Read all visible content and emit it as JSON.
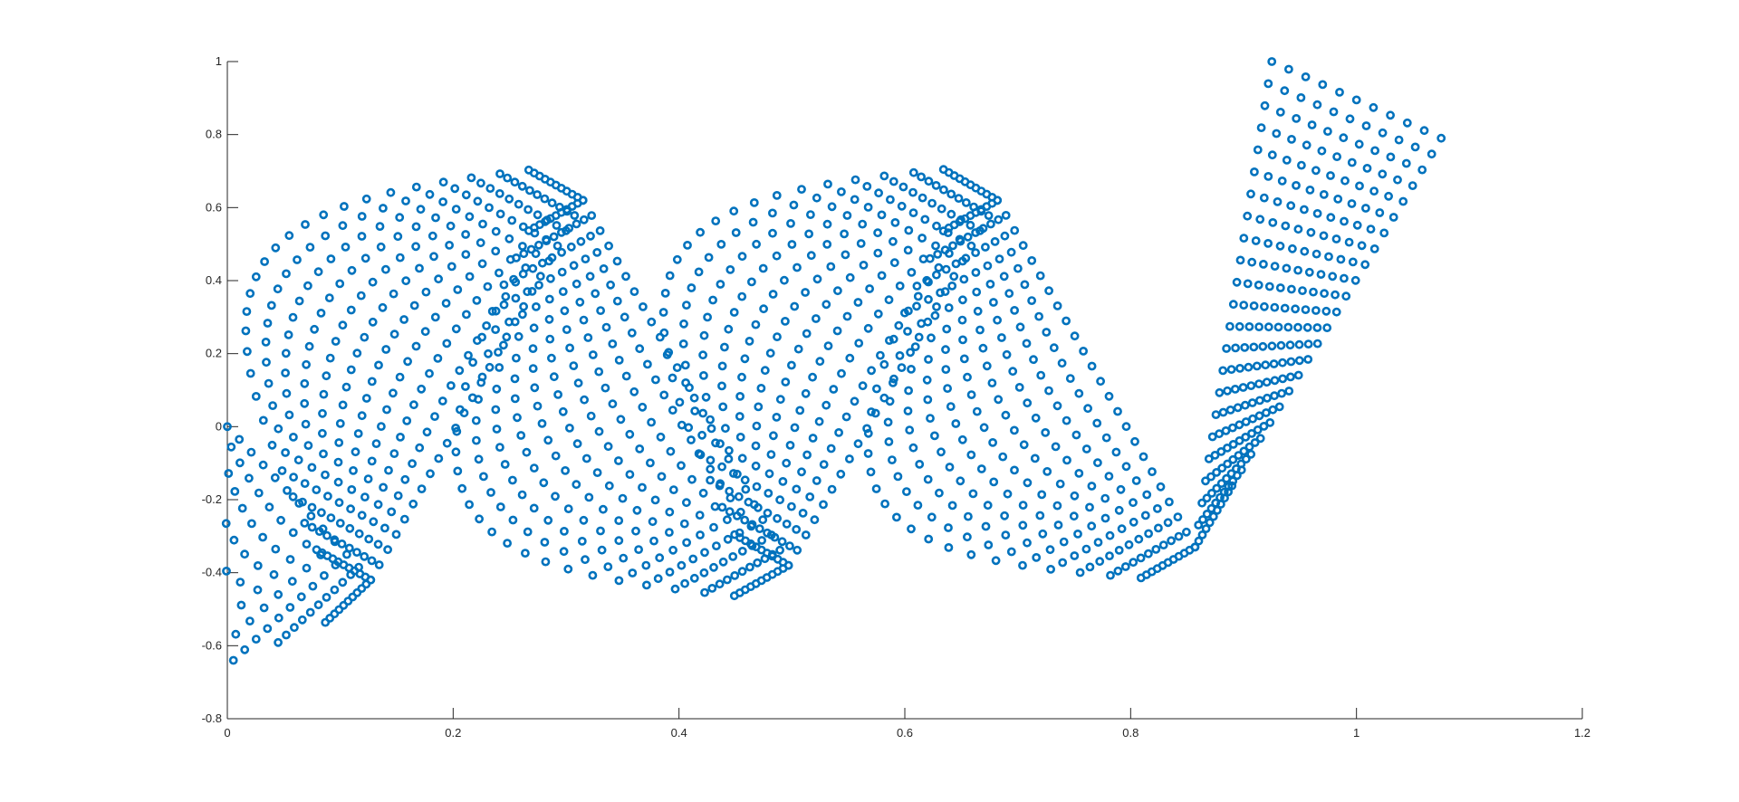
{
  "chart_data": {
    "type": "scatter",
    "title": "",
    "xlabel": "",
    "ylabel": "",
    "xlim": [
      0,
      1.2
    ],
    "ylim": [
      -0.8,
      1
    ],
    "xticks": [
      0,
      0.2,
      0.4,
      0.6,
      0.8,
      1,
      1.2
    ],
    "yticks": [
      -0.8,
      -0.6,
      -0.4,
      -0.2,
      0,
      0.2,
      0.4,
      0.6,
      0.8,
      1
    ],
    "xtick_labels": [
      "0",
      "0.2",
      "0.4",
      "0.6",
      "0.8",
      "1",
      "1.2"
    ],
    "ytick_labels": [
      "-0.8",
      "-0.6",
      "-0.4",
      "-0.2",
      "0",
      "0.2",
      "0.4",
      "0.6",
      "0.8",
      "1"
    ],
    "grid": false,
    "legend": "none",
    "marker": "circle-open",
    "color": "#0072BD",
    "series": [
      {
        "description_of_shape": "",
        "radial_fan_centers": [
          [
            0.0,
            0.0
          ],
          [
            0.127,
            -0.42
          ],
          [
            0.315,
            0.62
          ],
          [
            0.497,
            -0.38
          ],
          [
            0.682,
            0.62
          ],
          [
            0.857,
            -0.33
          ]
        ],
        "fan_inner_radius": 0.0,
        "fan_outer_radius": 0.22,
        "fan_rows": 11,
        "final_strip": {
          "corners": [
            [
              0.857,
              -0.33
            ],
            [
              0.925,
              1.0
            ],
            [
              1.075,
              0.79
            ]
          ]
        }
      }
    ]
  }
}
